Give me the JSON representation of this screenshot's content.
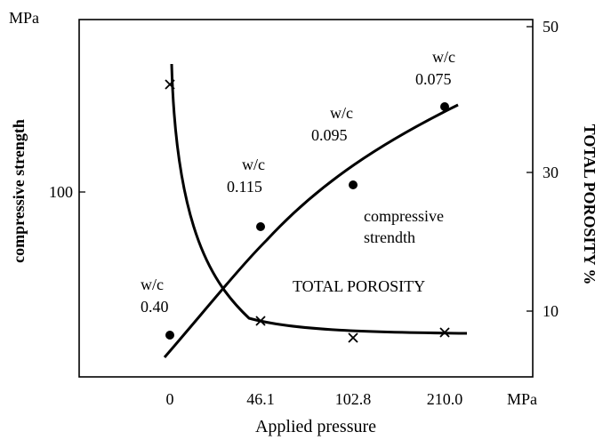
{
  "chart_data": {
    "type": "line",
    "x_ticks": [
      "0",
      "46.1",
      "102.8",
      "210.0"
    ],
    "x_unit": "MPa",
    "xlabel": "Applied pressure",
    "left_axis": {
      "label": "compressive strength",
      "unit": "MPa",
      "ticks": [
        "100"
      ]
    },
    "right_axis": {
      "label": "TOTAL POROSITY %",
      "ticks": [
        "10",
        "30",
        "50"
      ]
    },
    "series": [
      {
        "name": "compressive strendth",
        "axis": "left",
        "points": [
          {
            "x": "0",
            "y": 40
          },
          {
            "x": "46.1",
            "y": 89
          },
          {
            "x": "102.8",
            "y": 104
          },
          {
            "x": "210.0",
            "y": 128
          }
        ]
      },
      {
        "name": "TOTAL POROSITY",
        "axis": "right",
        "points": [
          {
            "x": "0",
            "y": 42
          },
          {
            "x": "46.1",
            "y": 8.5
          },
          {
            "x": "102.8",
            "y": 6.5
          },
          {
            "x": "210.0",
            "y": 7
          }
        ]
      }
    ],
    "point_labels": [
      {
        "line1": "w/c",
        "line2": "0.40"
      },
      {
        "line1": "w/c",
        "line2": "0.115"
      },
      {
        "line1": "w/c",
        "line2": "0.095"
      },
      {
        "line1": "w/c",
        "line2": "0.075"
      }
    ]
  }
}
